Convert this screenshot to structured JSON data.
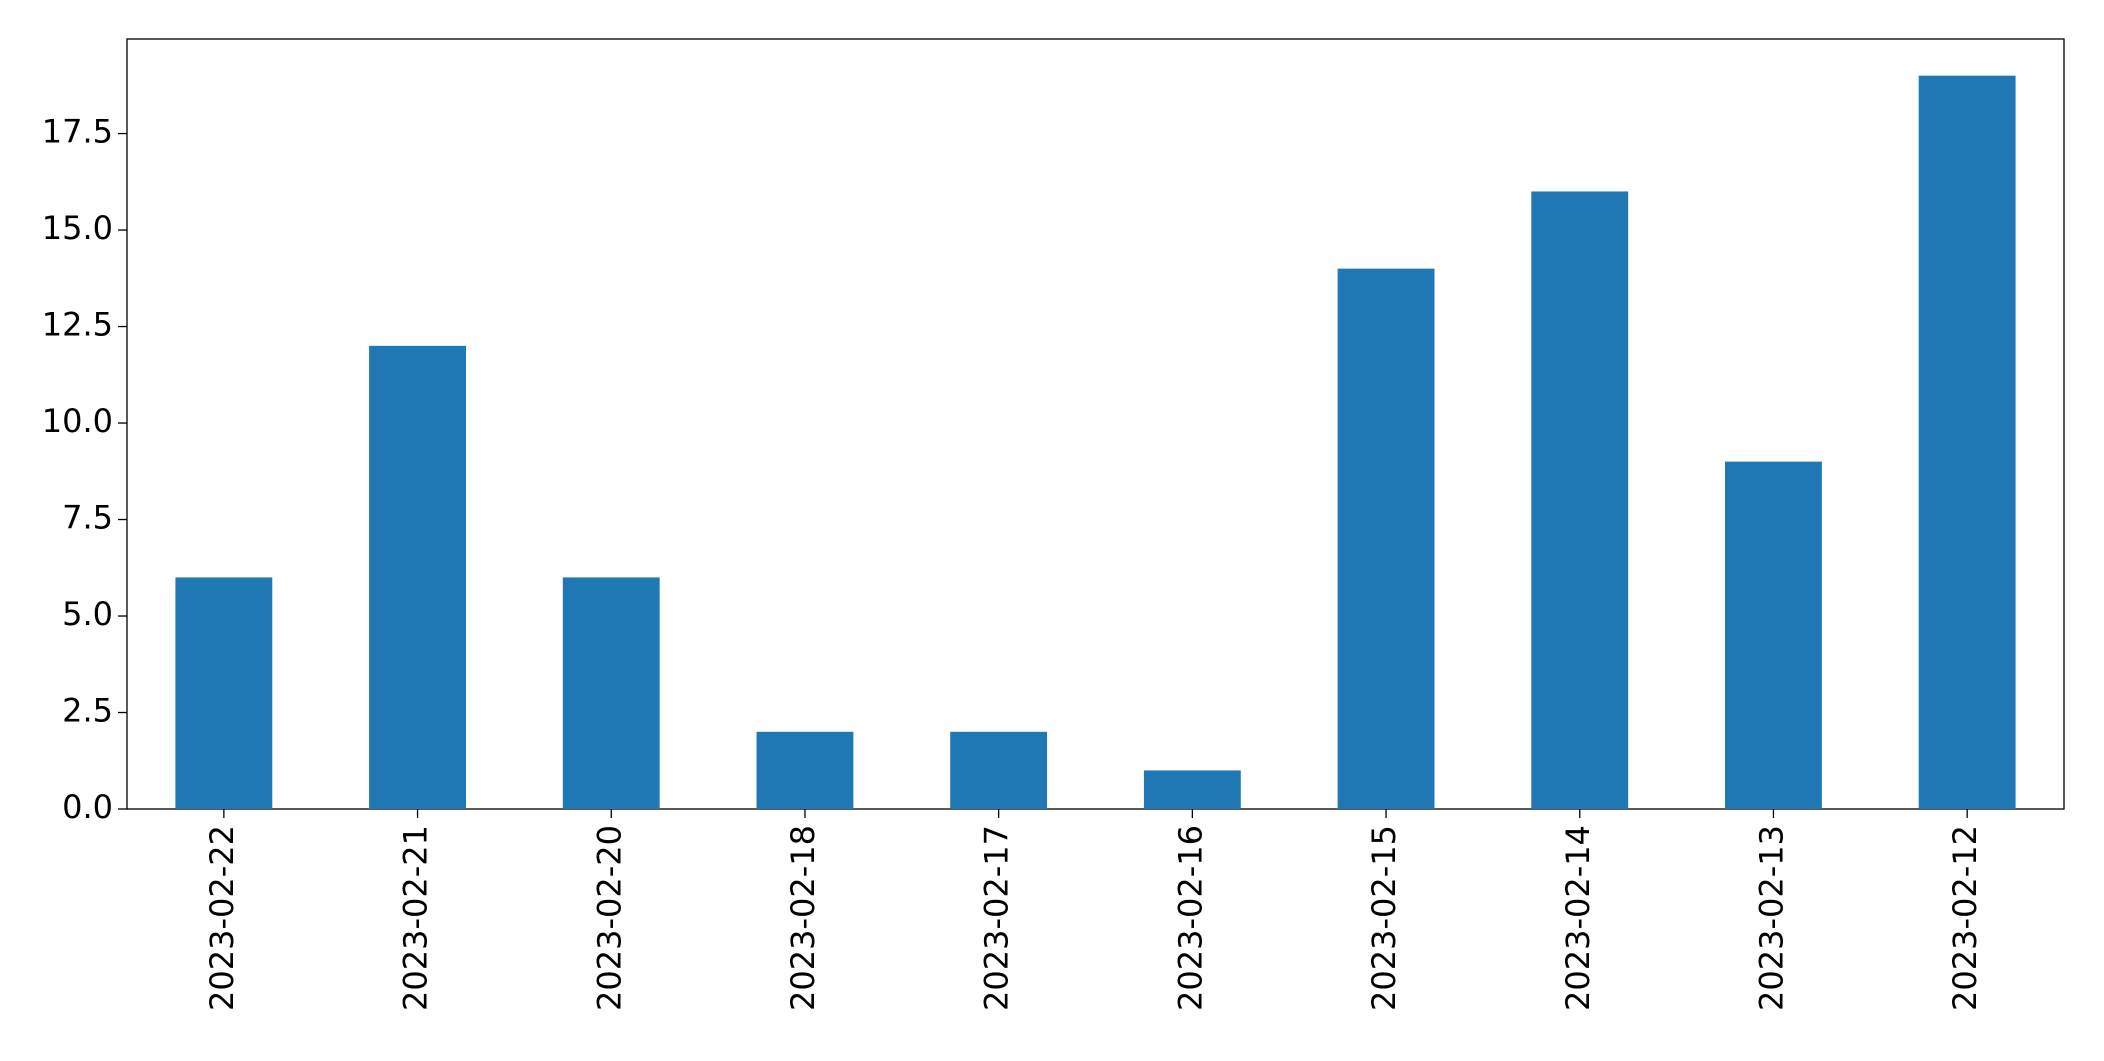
{
  "chart_data": {
    "type": "bar",
    "categories": [
      "2023-02-22",
      "2023-02-21",
      "2023-02-20",
      "2023-02-18",
      "2023-02-17",
      "2023-02-16",
      "2023-02-15",
      "2023-02-14",
      "2023-02-13",
      "2023-02-12"
    ],
    "values": [
      6,
      12,
      6,
      2,
      2,
      1,
      14,
      16,
      9,
      19
    ],
    "color": "#1f77b4",
    "ylim": [
      0,
      19.95
    ],
    "yticks": [
      {
        "value": 0,
        "label": "0.0"
      },
      2.5,
      {
        "value": 5,
        "label": "5.0"
      },
      7.5,
      {
        "value": 10,
        "label": "10.0"
      },
      12.5,
      {
        "value": 15,
        "label": "15.0"
      },
      17.5
    ],
    "grid": false
  }
}
